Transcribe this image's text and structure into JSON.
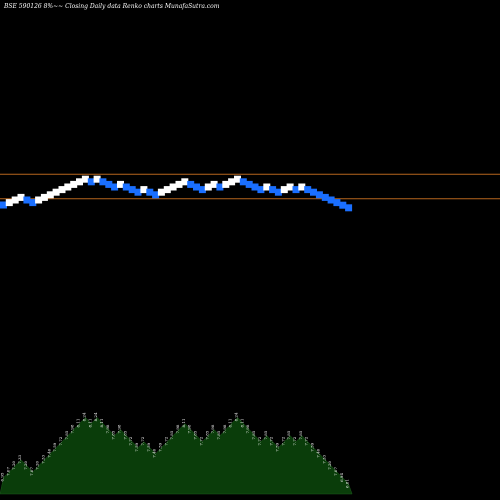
{
  "chart_data": {
    "type": "renko",
    "title": "BSE 590126  8%~~  Closing Daily data  Renko  charts MunafaSutra.com",
    "colors": {
      "background": "#000000",
      "up_brick": "#ffffff",
      "down_brick": "#1a6fff",
      "reference_line": "#b5651d",
      "volume_area": "#0a3d0a",
      "volume_label": "#ffffff"
    },
    "reference_lines": [
      8.49,
      7.26
    ],
    "y_range": [
      3.0,
      10.0
    ],
    "bricks": [
      {
        "dir": "down",
        "close": 6.95
      },
      {
        "dir": "up",
        "close": 7.07
      },
      {
        "dir": "up",
        "close": 7.2
      },
      {
        "dir": "up",
        "close": 7.33
      },
      {
        "dir": "down",
        "close": 7.2
      },
      {
        "dir": "down",
        "close": 7.07
      },
      {
        "dir": "up",
        "close": 7.2
      },
      {
        "dir": "up",
        "close": 7.33
      },
      {
        "dir": "up",
        "close": 7.46
      },
      {
        "dir": "up",
        "close": 7.59
      },
      {
        "dir": "up",
        "close": 7.72
      },
      {
        "dir": "up",
        "close": 7.85
      },
      {
        "dir": "up",
        "close": 7.98
      },
      {
        "dir": "up",
        "close": 8.11
      },
      {
        "dir": "up",
        "close": 8.24
      },
      {
        "dir": "down",
        "close": 8.11
      },
      {
        "dir": "up",
        "close": 8.24
      },
      {
        "dir": "down",
        "close": 8.11
      },
      {
        "dir": "down",
        "close": 7.98
      },
      {
        "dir": "down",
        "close": 7.85
      },
      {
        "dir": "up",
        "close": 7.98
      },
      {
        "dir": "down",
        "close": 7.85
      },
      {
        "dir": "down",
        "close": 7.72
      },
      {
        "dir": "down",
        "close": 7.59
      },
      {
        "dir": "up",
        "close": 7.72
      },
      {
        "dir": "down",
        "close": 7.59
      },
      {
        "dir": "down",
        "close": 7.46
      },
      {
        "dir": "up",
        "close": 7.59
      },
      {
        "dir": "up",
        "close": 7.72
      },
      {
        "dir": "up",
        "close": 7.85
      },
      {
        "dir": "up",
        "close": 7.98
      },
      {
        "dir": "up",
        "close": 8.11
      },
      {
        "dir": "down",
        "close": 7.98
      },
      {
        "dir": "down",
        "close": 7.85
      },
      {
        "dir": "down",
        "close": 7.72
      },
      {
        "dir": "up",
        "close": 7.85
      },
      {
        "dir": "up",
        "close": 7.98
      },
      {
        "dir": "down",
        "close": 7.85
      },
      {
        "dir": "up",
        "close": 7.98
      },
      {
        "dir": "up",
        "close": 8.11
      },
      {
        "dir": "up",
        "close": 8.24
      },
      {
        "dir": "down",
        "close": 8.11
      },
      {
        "dir": "down",
        "close": 7.98
      },
      {
        "dir": "down",
        "close": 7.85
      },
      {
        "dir": "down",
        "close": 7.72
      },
      {
        "dir": "up",
        "close": 7.85
      },
      {
        "dir": "down",
        "close": 7.72
      },
      {
        "dir": "down",
        "close": 7.59
      },
      {
        "dir": "up",
        "close": 7.72
      },
      {
        "dir": "up",
        "close": 7.85
      },
      {
        "dir": "down",
        "close": 7.72
      },
      {
        "dir": "up",
        "close": 7.85
      },
      {
        "dir": "down",
        "close": 7.72
      },
      {
        "dir": "down",
        "close": 7.59
      },
      {
        "dir": "down",
        "close": 7.46
      },
      {
        "dir": "down",
        "close": 7.33
      },
      {
        "dir": "down",
        "close": 7.2
      },
      {
        "dir": "down",
        "close": 7.07
      },
      {
        "dir": "down",
        "close": 6.94
      },
      {
        "dir": "down",
        "close": 6.81
      }
    ],
    "volume_labels": [
      "6.95",
      "7.07",
      "7.20",
      "7.33",
      "7.20",
      "7.07",
      "7.20",
      "7.33",
      "7.46",
      "7.59",
      "7.72",
      "7.85",
      "7.98",
      "8.11",
      "8.24",
      "8.11",
      "8.24",
      "8.11",
      "7.98",
      "7.85",
      "7.98",
      "7.85",
      "7.72",
      "7.59",
      "7.72",
      "7.59",
      "7.46",
      "7.59",
      "7.72",
      "7.85",
      "7.98",
      "8.11",
      "7.98",
      "7.85",
      "7.72",
      "7.85",
      "7.98",
      "7.85",
      "7.98",
      "8.11",
      "8.24",
      "8.11",
      "7.98",
      "7.85",
      "7.72",
      "7.85",
      "7.72",
      "7.59",
      "7.72",
      "7.85",
      "7.72",
      "7.85",
      "7.72",
      "7.59",
      "7.46",
      "7.33",
      "7.20",
      "7.07",
      "6.94",
      "6.81"
    ]
  }
}
